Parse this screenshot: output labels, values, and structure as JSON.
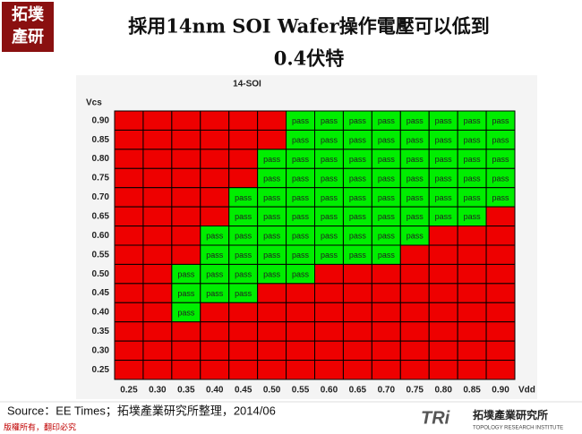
{
  "header": {
    "logo": [
      "拓墣",
      "產研"
    ],
    "title": [
      "採用14nm SOI Wafer操作電壓可以低到",
      "0.4伏特"
    ]
  },
  "chart_data": {
    "type": "shmoo",
    "title": "14-SOI",
    "y_label": "Vcs",
    "x_label": "Vdd",
    "x": [
      "0.25",
      "0.30",
      "0.35",
      "0.40",
      "0.45",
      "0.50",
      "0.55",
      "0.60",
      "0.65",
      "0.70",
      "0.75",
      "0.80",
      "0.85",
      "0.90"
    ],
    "y": [
      "0.90",
      "0.85",
      "0.80",
      "0.75",
      "0.70",
      "0.65",
      "0.60",
      "0.55",
      "0.50",
      "0.45",
      "0.40",
      "0.35",
      "0.30",
      "0.25"
    ],
    "pass_color": "#00ee00",
    "fail_color": "#ee0000",
    "cells": [
      [
        null,
        null,
        null,
        null,
        null,
        null,
        "pass",
        "pass",
        "pass",
        "pass",
        "pass",
        "pass",
        "pass",
        "pass"
      ],
      [
        null,
        null,
        null,
        null,
        null,
        null,
        "pass",
        "pass",
        "pass",
        "pass",
        "pass",
        "pass",
        "pass",
        "pass"
      ],
      [
        null,
        null,
        null,
        null,
        null,
        "pass",
        "pass",
        "pass",
        "pass",
        "pass",
        "pass",
        "pass",
        "pass",
        "pass"
      ],
      [
        null,
        null,
        null,
        null,
        null,
        "pass",
        "pass",
        "pass",
        "pass",
        "pass",
        "pass",
        "pass",
        "pass",
        "pass"
      ],
      [
        null,
        null,
        null,
        null,
        "pass",
        "pass",
        "pass",
        "pass",
        "pass",
        "pass",
        "pass",
        "pass",
        "pass",
        "pass"
      ],
      [
        null,
        null,
        null,
        null,
        "pass",
        "pass",
        "pass",
        "pass",
        "pass",
        "pass",
        "pass",
        "pass",
        "pass",
        null
      ],
      [
        null,
        null,
        null,
        "pass",
        "pass",
        "pass",
        "pass",
        "pass",
        "pass",
        "pass",
        "pass",
        null,
        null,
        null
      ],
      [
        null,
        null,
        null,
        "pass",
        "pass",
        "pass",
        "pass",
        "pass",
        "pass",
        "pass",
        null,
        null,
        null,
        null
      ],
      [
        null,
        null,
        "pass",
        "pass",
        "pass",
        "pass",
        "pass",
        null,
        null,
        null,
        null,
        null,
        null,
        null
      ],
      [
        null,
        null,
        "pass",
        "pass",
        "pass",
        null,
        null,
        null,
        null,
        null,
        null,
        null,
        null,
        null
      ],
      [
        null,
        null,
        "pass",
        null,
        null,
        null,
        null,
        null,
        null,
        null,
        null,
        null,
        null,
        null
      ],
      [
        null,
        null,
        null,
        null,
        null,
        null,
        null,
        null,
        null,
        null,
        null,
        null,
        null,
        null
      ],
      [
        null,
        null,
        null,
        null,
        null,
        null,
        null,
        null,
        null,
        null,
        null,
        null,
        null,
        null
      ],
      [
        null,
        null,
        null,
        null,
        null,
        null,
        null,
        null,
        null,
        null,
        null,
        null,
        null,
        null
      ]
    ]
  },
  "source": "Source：EE Times；拓墣產業研究所整理，2014/06",
  "footer": {
    "copyright": "版權所有，翻印必究",
    "brand": "TRi",
    "brand_name": "拓墣產業研究所",
    "brand_en": "TOPOLOGY RESEARCH INSTITUTE"
  }
}
